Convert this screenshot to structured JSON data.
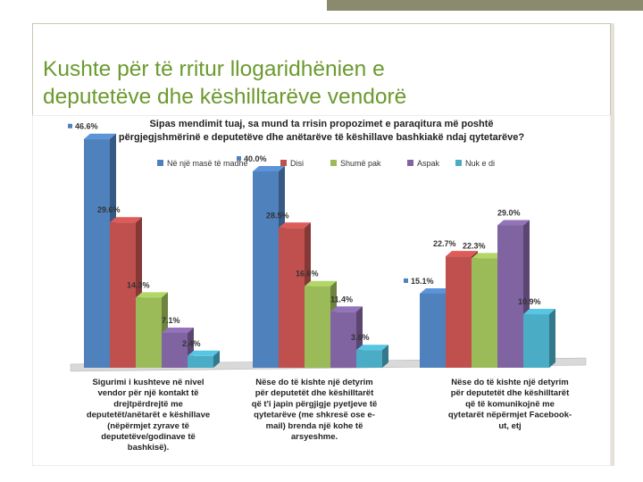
{
  "slide": {
    "title_line1": "Kushte për të rritur llogaridhënien e",
    "title_line2": "deputetëve dhe këshilltarëve vendorë"
  },
  "chart_data": {
    "type": "bar",
    "title_line1": "Sipas mendimit tuaj, sa mund ta rrisin propozimet e paraqitura më poshtë",
    "title_line2": "përgjegjshmërinë e deputetëve dhe anëtarëve të këshillave bashkiakë ndaj qytetarëve?",
    "legend_position": "top",
    "grid": false,
    "ylim": [
      0,
      50
    ],
    "categories": [
      [
        "Sigurimi i kushteve në nivel",
        "vendor për një kontakt të",
        "drejtpërdrejtë me",
        "deputetët/anëtarët e këshillave",
        "(nëpërmjet zyrave të",
        "deputetëve/godinave të",
        "bashkisë)."
      ],
      [
        "Nëse do të kishte një detyrim",
        "për deputetët dhe këshilltarët",
        "që t'i japin përgjigje pyetjeve të",
        "qytetarëve (me shkresë ose e-",
        "mail) brenda një kohe të",
        "arsyeshme."
      ],
      [
        "Nëse do të kishte një detyrim",
        "për deputetët dhe këshilltarët",
        "që të komunikojnë me",
        "qytetarët nëpërmjet Facebook-",
        "ut, etj"
      ]
    ],
    "series": [
      {
        "name": "Në një masë të madhe",
        "color": "#4f81bd",
        "values": [
          46.6,
          40.0,
          15.1
        ],
        "labels": [
          "46.6%",
          "40.0%",
          "15.1%"
        ]
      },
      {
        "name": "Disi",
        "color": "#c0504d",
        "values": [
          29.6,
          28.5,
          22.7
        ],
        "labels": [
          "29.6%",
          "28.5%",
          "22.7%"
        ]
      },
      {
        "name": "Shumë pak",
        "color": "#9bbb59",
        "values": [
          14.3,
          16.6,
          22.3
        ],
        "labels": [
          "14.3%",
          "16.6%",
          "22.3%"
        ]
      },
      {
        "name": "Aspak",
        "color": "#8064a2",
        "values": [
          7.1,
          11.4,
          29.0
        ],
        "labels": [
          "7.1%",
          "11.4%",
          "29.0%"
        ]
      },
      {
        "name": "Nuk e di",
        "color": "#4bacc6",
        "values": [
          2.4,
          3.6,
          10.9
        ],
        "labels": [
          "2.4%",
          "3.6%",
          "10.9%"
        ]
      }
    ]
  }
}
